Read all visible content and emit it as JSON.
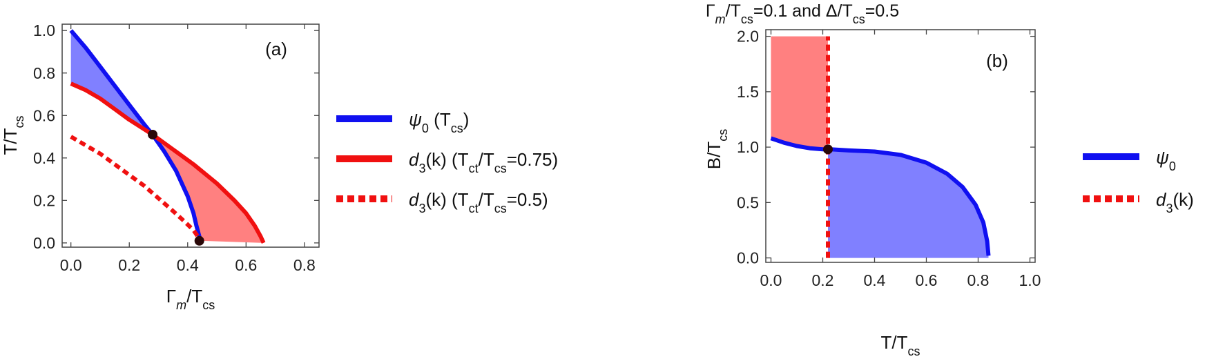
{
  "colors": {
    "blue": "#1010f0",
    "red": "#f01010",
    "blue_fill": "#8080ff",
    "red_fill": "#ff8080",
    "marker": "#2a0808"
  },
  "chart_data": [
    {
      "type": "line",
      "panel_label": "(a)",
      "title": "",
      "xlabel": {
        "base": "Γ",
        "sub": "m",
        "mid": "/T",
        "sub2": "cs"
      },
      "ylabel": {
        "base": "T/T",
        "sub": "cs"
      },
      "xlim": [
        -0.03,
        0.85
      ],
      "ylim": [
        -0.02,
        1.03
      ],
      "xticks": [
        "0.0",
        "0.2",
        "0.4",
        "0.6",
        "0.8"
      ],
      "yticks": [
        "0.0",
        "0.2",
        "0.4",
        "0.6",
        "0.8",
        "1.0"
      ],
      "xtick_values": [
        0,
        0.2,
        0.4,
        0.6,
        0.8
      ],
      "ytick_values": [
        0,
        0.2,
        0.4,
        0.6,
        0.8,
        1.0
      ],
      "series": [
        {
          "name": "ψ0 (Tcs)",
          "style": "solid",
          "color": "blue",
          "x": [
            0.0,
            0.05,
            0.1,
            0.15,
            0.2,
            0.25,
            0.28,
            0.32,
            0.36,
            0.4,
            0.42,
            0.43,
            0.44,
            0.445
          ],
          "y": [
            1.0,
            0.92,
            0.83,
            0.74,
            0.65,
            0.56,
            0.51,
            0.43,
            0.34,
            0.22,
            0.14,
            0.08,
            0.03,
            0.01
          ]
        },
        {
          "name": "d3(k) (Tct/Tcs=0.75)",
          "style": "solid",
          "color": "red",
          "x": [
            0.0,
            0.05,
            0.1,
            0.15,
            0.2,
            0.28,
            0.35,
            0.42,
            0.5,
            0.56,
            0.6,
            0.63,
            0.65,
            0.66
          ],
          "y": [
            0.75,
            0.72,
            0.68,
            0.63,
            0.58,
            0.51,
            0.44,
            0.37,
            0.28,
            0.2,
            0.14,
            0.08,
            0.03,
            0.0
          ]
        },
        {
          "name": "d3(k) (Tct/Tcs=0.5)",
          "style": "dashed",
          "color": "red",
          "x": [
            0.0,
            0.05,
            0.1,
            0.15,
            0.2,
            0.25,
            0.3,
            0.35,
            0.39,
            0.42,
            0.44
          ],
          "y": [
            0.5,
            0.46,
            0.42,
            0.37,
            0.32,
            0.27,
            0.21,
            0.15,
            0.1,
            0.06,
            0.02
          ]
        }
      ],
      "markers": [
        {
          "x": 0.28,
          "y": 0.51
        },
        {
          "x": 0.44,
          "y": 0.01
        }
      ],
      "legend": [
        {
          "style": "solid",
          "color": "blue",
          "label": {
            "base": "ψ",
            "sub": "0",
            "paren": " (T",
            "psub": "cs",
            "close": ")"
          }
        },
        {
          "style": "solid",
          "color": "red",
          "label": {
            "base": "d",
            "sub": "3",
            "mid": "(k) (T",
            "sub2": "ct",
            "mid2": "/T",
            "sub3": "cs",
            "tail": "=0.75)"
          }
        },
        {
          "style": "dashed",
          "color": "red",
          "label": {
            "base": "d",
            "sub": "3",
            "mid": "(k) (T",
            "sub2": "ct",
            "mid2": "/T",
            "sub3": "cs",
            "tail": "=0.5)"
          }
        }
      ]
    },
    {
      "type": "line",
      "panel_label": "(b)",
      "title": {
        "base": "Γ",
        "sub": "m",
        "mid": "/T",
        "sub2": "cs",
        "mid2": "=0.1 and Δ/T",
        "sub3": "cs",
        "tail": "=0.5"
      },
      "xlabel": {
        "base": "T/T",
        "sub": "cs"
      },
      "ylabel": {
        "base": "B/T",
        "sub": "cs"
      },
      "xlim": [
        -0.02,
        1.02
      ],
      "ylim": [
        -0.04,
        2.06
      ],
      "xticks": [
        "0.0",
        "0.2",
        "0.4",
        "0.6",
        "0.8",
        "1.0"
      ],
      "yticks": [
        "0.0",
        "0.5",
        "1.0",
        "1.5",
        "2.0"
      ],
      "xtick_values": [
        0,
        0.2,
        0.4,
        0.6,
        0.8,
        1.0
      ],
      "ytick_values": [
        0,
        0.5,
        1.0,
        1.5,
        2.0
      ],
      "series": [
        {
          "name": "ψ0",
          "style": "solid",
          "color": "blue",
          "x": [
            0.0,
            0.05,
            0.1,
            0.15,
            0.2,
            0.23,
            0.3,
            0.4,
            0.5,
            0.6,
            0.68,
            0.74,
            0.79,
            0.82,
            0.835,
            0.84
          ],
          "y": [
            1.08,
            1.04,
            1.01,
            0.99,
            0.98,
            0.98,
            0.97,
            0.96,
            0.93,
            0.86,
            0.76,
            0.64,
            0.48,
            0.32,
            0.15,
            0.02
          ]
        },
        {
          "name": "d3(k)",
          "style": "dashed",
          "color": "red",
          "x": [
            0.22,
            0.22
          ],
          "y": [
            0.0,
            2.0
          ]
        }
      ],
      "markers": [
        {
          "x": 0.22,
          "y": 0.98
        }
      ],
      "legend": [
        {
          "style": "solid",
          "color": "blue",
          "label": {
            "base": "ψ",
            "sub": "0"
          }
        },
        {
          "style": "dashed",
          "color": "red",
          "label": {
            "base": "d",
            "sub": "3",
            "tail": "(k)"
          }
        }
      ]
    }
  ]
}
